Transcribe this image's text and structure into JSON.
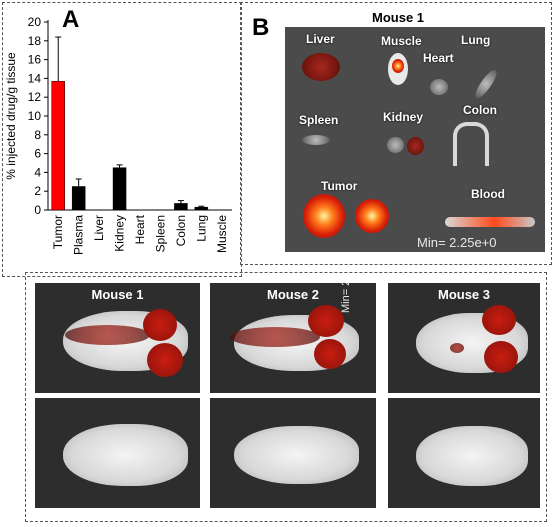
{
  "panel_a": {
    "letter": "A"
  },
  "panel_b": {
    "letter": "B",
    "image_title": "Mouse 1",
    "scale_text": "Min= 2.25e+0"
  },
  "organ_labels": [
    "Liver",
    "Muscle",
    "Heart",
    "Lung",
    "Spleen",
    "Kidney",
    "Colon",
    "Tumor",
    "Blood"
  ],
  "mouse_panels": [
    {
      "title": "Mouse 1"
    },
    {
      "title": "Mouse 2",
      "side_text": "Min= 2."
    },
    {
      "title": "Mouse 3"
    }
  ],
  "chart_data": {
    "type": "bar",
    "title": "",
    "ylabel": "% injected drug/g tissue",
    "xlabel": "",
    "categories": [
      "Tumor",
      "Plasma",
      "Liver",
      "Kidney",
      "Heart",
      "Spleen",
      "Colon",
      "Lung",
      "Muscle"
    ],
    "values": [
      13.7,
      2.5,
      0,
      4.5,
      0,
      0,
      0.7,
      0.3,
      0
    ],
    "errors": [
      4.7,
      0.8,
      0,
      0.3,
      0,
      0,
      0.3,
      0.1,
      0
    ],
    "colors": [
      "#ff0000",
      "#000000",
      "#000000",
      "#000000",
      "#000000",
      "#000000",
      "#000000",
      "#000000",
      "#000000"
    ],
    "ylim": [
      0,
      20
    ],
    "yticks": [
      0,
      2,
      4,
      6,
      8,
      10,
      12,
      14,
      16,
      18,
      20
    ],
    "grid": false,
    "legend": "none"
  }
}
